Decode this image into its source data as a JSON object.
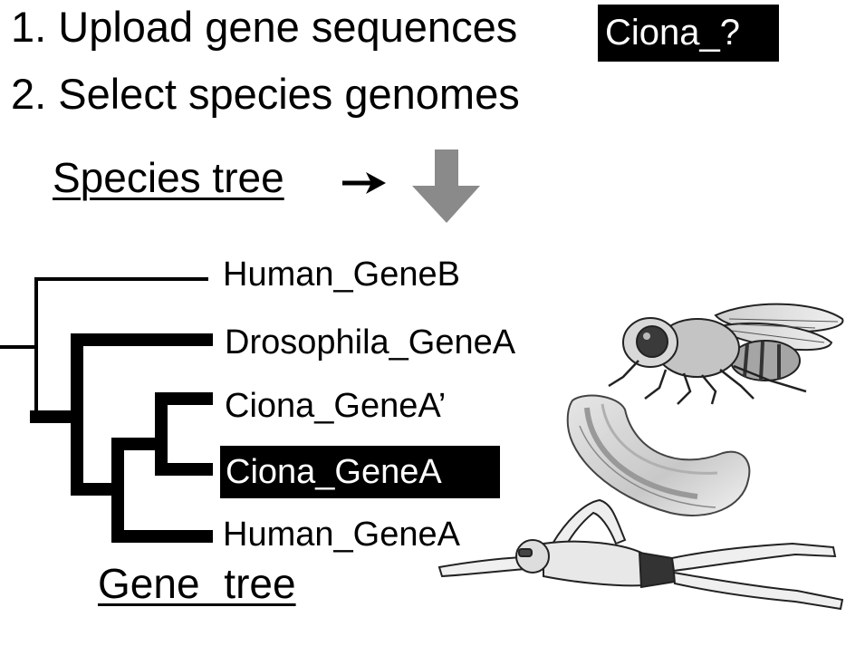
{
  "steps": {
    "step1": "1. Upload gene sequences",
    "step2": "2. Select species genomes"
  },
  "query_badge": "Ciona_?",
  "species_tree_label": "Species tree",
  "gene_tree_label": "Gene tree",
  "gene_tree": {
    "leaves": [
      "Human_GeneB",
      "Drosophila_GeneA",
      "Ciona_GeneA’",
      "Ciona_GeneA",
      "Human_GeneA"
    ],
    "highlighted_index": 3
  },
  "colors": {
    "text": "#000000",
    "highlight_background": "#000000",
    "highlight_text": "#ffffff",
    "down_arrow": "#8a8a8a"
  },
  "icons": {
    "flow_arrow": "right-arrow-icon",
    "step_arrow": "down-arrow-icon",
    "fly": "drosophila-illustration",
    "ciona": "ciona-illustration",
    "human": "human-swimmer-illustration"
  }
}
